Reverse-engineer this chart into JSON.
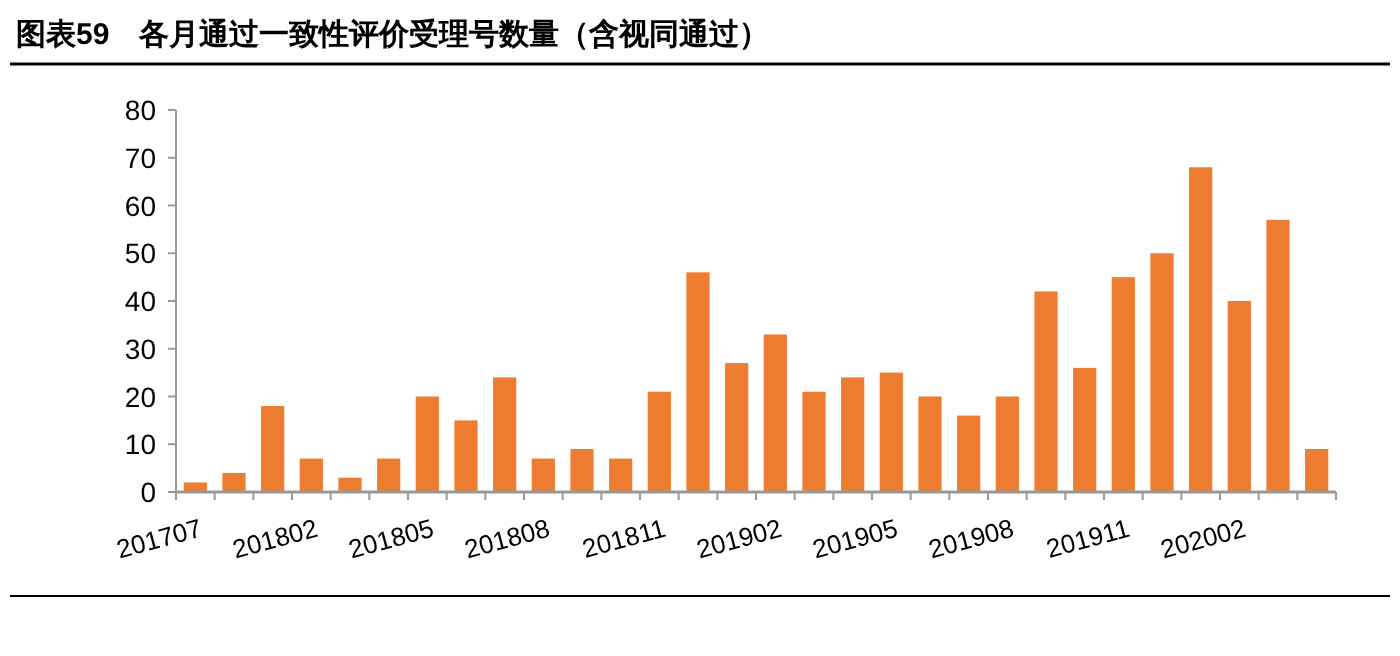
{
  "chart_data": {
    "type": "bar",
    "title": "图表59　各月通过一致性评价受理号数量（含视同通过）",
    "categories": [
      "201707",
      null,
      null,
      "201802",
      null,
      null,
      "201805",
      null,
      null,
      "201808",
      null,
      null,
      "201811",
      null,
      null,
      "201902",
      null,
      null,
      "201905",
      null,
      null,
      "201908",
      null,
      null,
      "201911",
      null,
      null,
      "202002",
      null,
      null
    ],
    "values": [
      2,
      4,
      18,
      7,
      3,
      7,
      20,
      15,
      24,
      7,
      9,
      7,
      21,
      46,
      27,
      33,
      21,
      24,
      25,
      20,
      16,
      20,
      42,
      26,
      45,
      50,
      68,
      40,
      57,
      9
    ],
    "color": "#ed7d31",
    "ylim": [
      0,
      80
    ],
    "yticks": [
      0,
      10,
      20,
      30,
      40,
      50,
      60,
      70,
      80
    ],
    "grid": false
  }
}
